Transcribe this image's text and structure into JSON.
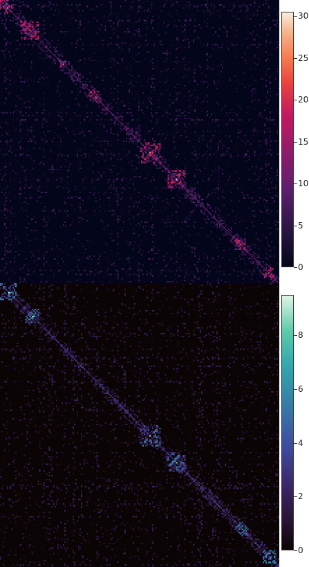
{
  "chart_data": [
    {
      "type": "heatmap",
      "title": "",
      "xlabel": "",
      "ylabel": "",
      "colormap": "magma-like (dark navy to purple to red to cream)",
      "colorbar": {
        "range": [
          0,
          30.5
        ],
        "ticks": [
          0,
          5,
          10,
          15,
          20,
          25,
          30
        ],
        "tick_labels": [
          "0",
          "5",
          "10",
          "15",
          "20",
          "25",
          "30"
        ]
      },
      "matrix_size": 200,
      "structure": "sparse symmetric matrix with block-diagonal clusters of high values along the diagonal and scattered off-diagonal stripes; max value about 30",
      "diagonal_blocks": [
        {
          "start": 0,
          "end": 10
        },
        {
          "start": 15,
          "end": 28
        },
        {
          "start": 42,
          "end": 48
        },
        {
          "start": 64,
          "end": 72
        },
        {
          "start": 100,
          "end": 115
        },
        {
          "start": 120,
          "end": 133
        },
        {
          "start": 168,
          "end": 176
        },
        {
          "start": 188,
          "end": 196
        }
      ]
    },
    {
      "type": "heatmap",
      "title": "",
      "xlabel": "",
      "ylabel": "",
      "colormap": "mako-like (near black to purple to blue to teal to mint)",
      "colorbar": {
        "range": [
          0,
          9.5
        ],
        "ticks": [
          0,
          2,
          4,
          6,
          8
        ],
        "tick_labels": [
          "0",
          "2",
          "4",
          "6",
          "8"
        ]
      },
      "matrix_size": 200,
      "structure": "sparse symmetric matrix with block-diagonal clusters along the diagonal and scattered off-diagonal stripes; max value about 9",
      "diagonal_blocks": [
        {
          "start": 0,
          "end": 12
        },
        {
          "start": 18,
          "end": 28
        },
        {
          "start": 100,
          "end": 115
        },
        {
          "start": 120,
          "end": 133
        },
        {
          "start": 168,
          "end": 178
        },
        {
          "start": 188,
          "end": 198
        }
      ]
    }
  ],
  "colors": {
    "top_background": "#03051a",
    "bottom_background": "#0b0405"
  }
}
